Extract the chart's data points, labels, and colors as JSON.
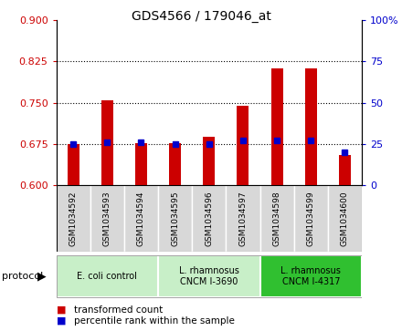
{
  "title": "GDS4566 / 179046_at",
  "samples": [
    "GSM1034592",
    "GSM1034593",
    "GSM1034594",
    "GSM1034595",
    "GSM1034596",
    "GSM1034597",
    "GSM1034598",
    "GSM1034599",
    "GSM1034600"
  ],
  "transformed_count": [
    0.675,
    0.755,
    0.677,
    0.677,
    0.688,
    0.745,
    0.812,
    0.812,
    0.655
  ],
  "percentile_rank": [
    25,
    26,
    26,
    25,
    25,
    27,
    27,
    27,
    20
  ],
  "ylim_left": [
    0.6,
    0.9
  ],
  "ylim_right": [
    0,
    100
  ],
  "yticks_left": [
    0.6,
    0.675,
    0.75,
    0.825,
    0.9
  ],
  "yticks_right": [
    0,
    25,
    50,
    75,
    100
  ],
  "baseline": 0.6,
  "protocols": [
    {
      "label": "E. coli control",
      "indices": [
        0,
        1,
        2
      ],
      "color": "#c8efc8"
    },
    {
      "label": "L. rhamnosus\nCNCM I-3690",
      "indices": [
        3,
        4,
        5
      ],
      "color": "#c8efc8"
    },
    {
      "label": "L. rhamnosus\nCNCM I-4317",
      "indices": [
        6,
        7,
        8
      ],
      "color": "#30c030"
    }
  ],
  "bar_color": "#cc0000",
  "dot_color": "#0000cc",
  "bar_width": 0.35,
  "legend_items": [
    {
      "label": "transformed count",
      "color": "#cc0000"
    },
    {
      "label": "percentile rank within the sample",
      "color": "#0000cc"
    }
  ],
  "grid_color": "black",
  "sample_box_color": "#d8d8d8",
  "plot_bg_color": "#ffffff"
}
